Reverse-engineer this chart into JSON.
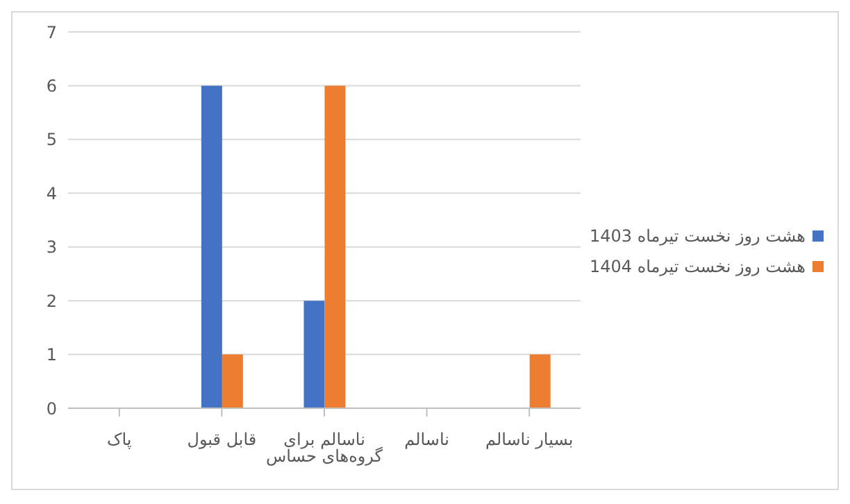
{
  "chart_data": {
    "type": "bar",
    "categories": [
      "پاک",
      "قابل قبول",
      "ناسالم برای گروه‌های حساس",
      "ناسالم",
      "بسیار ناسالم"
    ],
    "series": [
      {
        "name": "هشت روز نخست تیرماه 1403",
        "color": "#4472c4",
        "values": [
          0,
          6,
          2,
          0,
          0
        ]
      },
      {
        "name": "هشت روز نخست تیرماه 1404",
        "color": "#ed7d31",
        "values": [
          0,
          1,
          6,
          0,
          1
        ]
      }
    ],
    "ylim": [
      0,
      7
    ],
    "yticks": [
      0,
      1,
      2,
      3,
      4,
      5,
      6,
      7
    ],
    "grid": "y",
    "legend": "right"
  }
}
